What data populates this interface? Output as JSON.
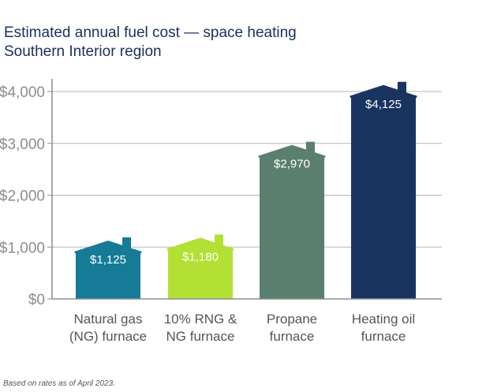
{
  "chart_data": {
    "type": "bar",
    "title": "Estimated annual fuel cost — space heating",
    "subtitle": "Southern Interior region",
    "categories": [
      [
        "Natural gas",
        "(NG) furnace"
      ],
      [
        "10% RNG &",
        "NG furnace"
      ],
      [
        "Propane",
        "furnace"
      ],
      [
        "Heating oil",
        "furnace"
      ]
    ],
    "values": [
      1125,
      1180,
      2970,
      4125
    ],
    "data_labels": [
      "$1,125",
      "$1,180",
      "$2,970",
      "$4,125"
    ],
    "colors": [
      "#157b97",
      "#b3e035",
      "#5a7f6e",
      "#1a3461"
    ],
    "bar_shape": "house",
    "ylim": [
      0,
      4000
    ],
    "yticks": [
      0,
      1000,
      2000,
      3000,
      4000
    ],
    "ytick_labels": [
      "$0",
      "$1,000",
      "$2,000",
      "$3,000",
      "$4,000"
    ],
    "xlabel": "",
    "ylabel": "",
    "grid": true,
    "footnote": "Based on rates as of April 2023."
  }
}
